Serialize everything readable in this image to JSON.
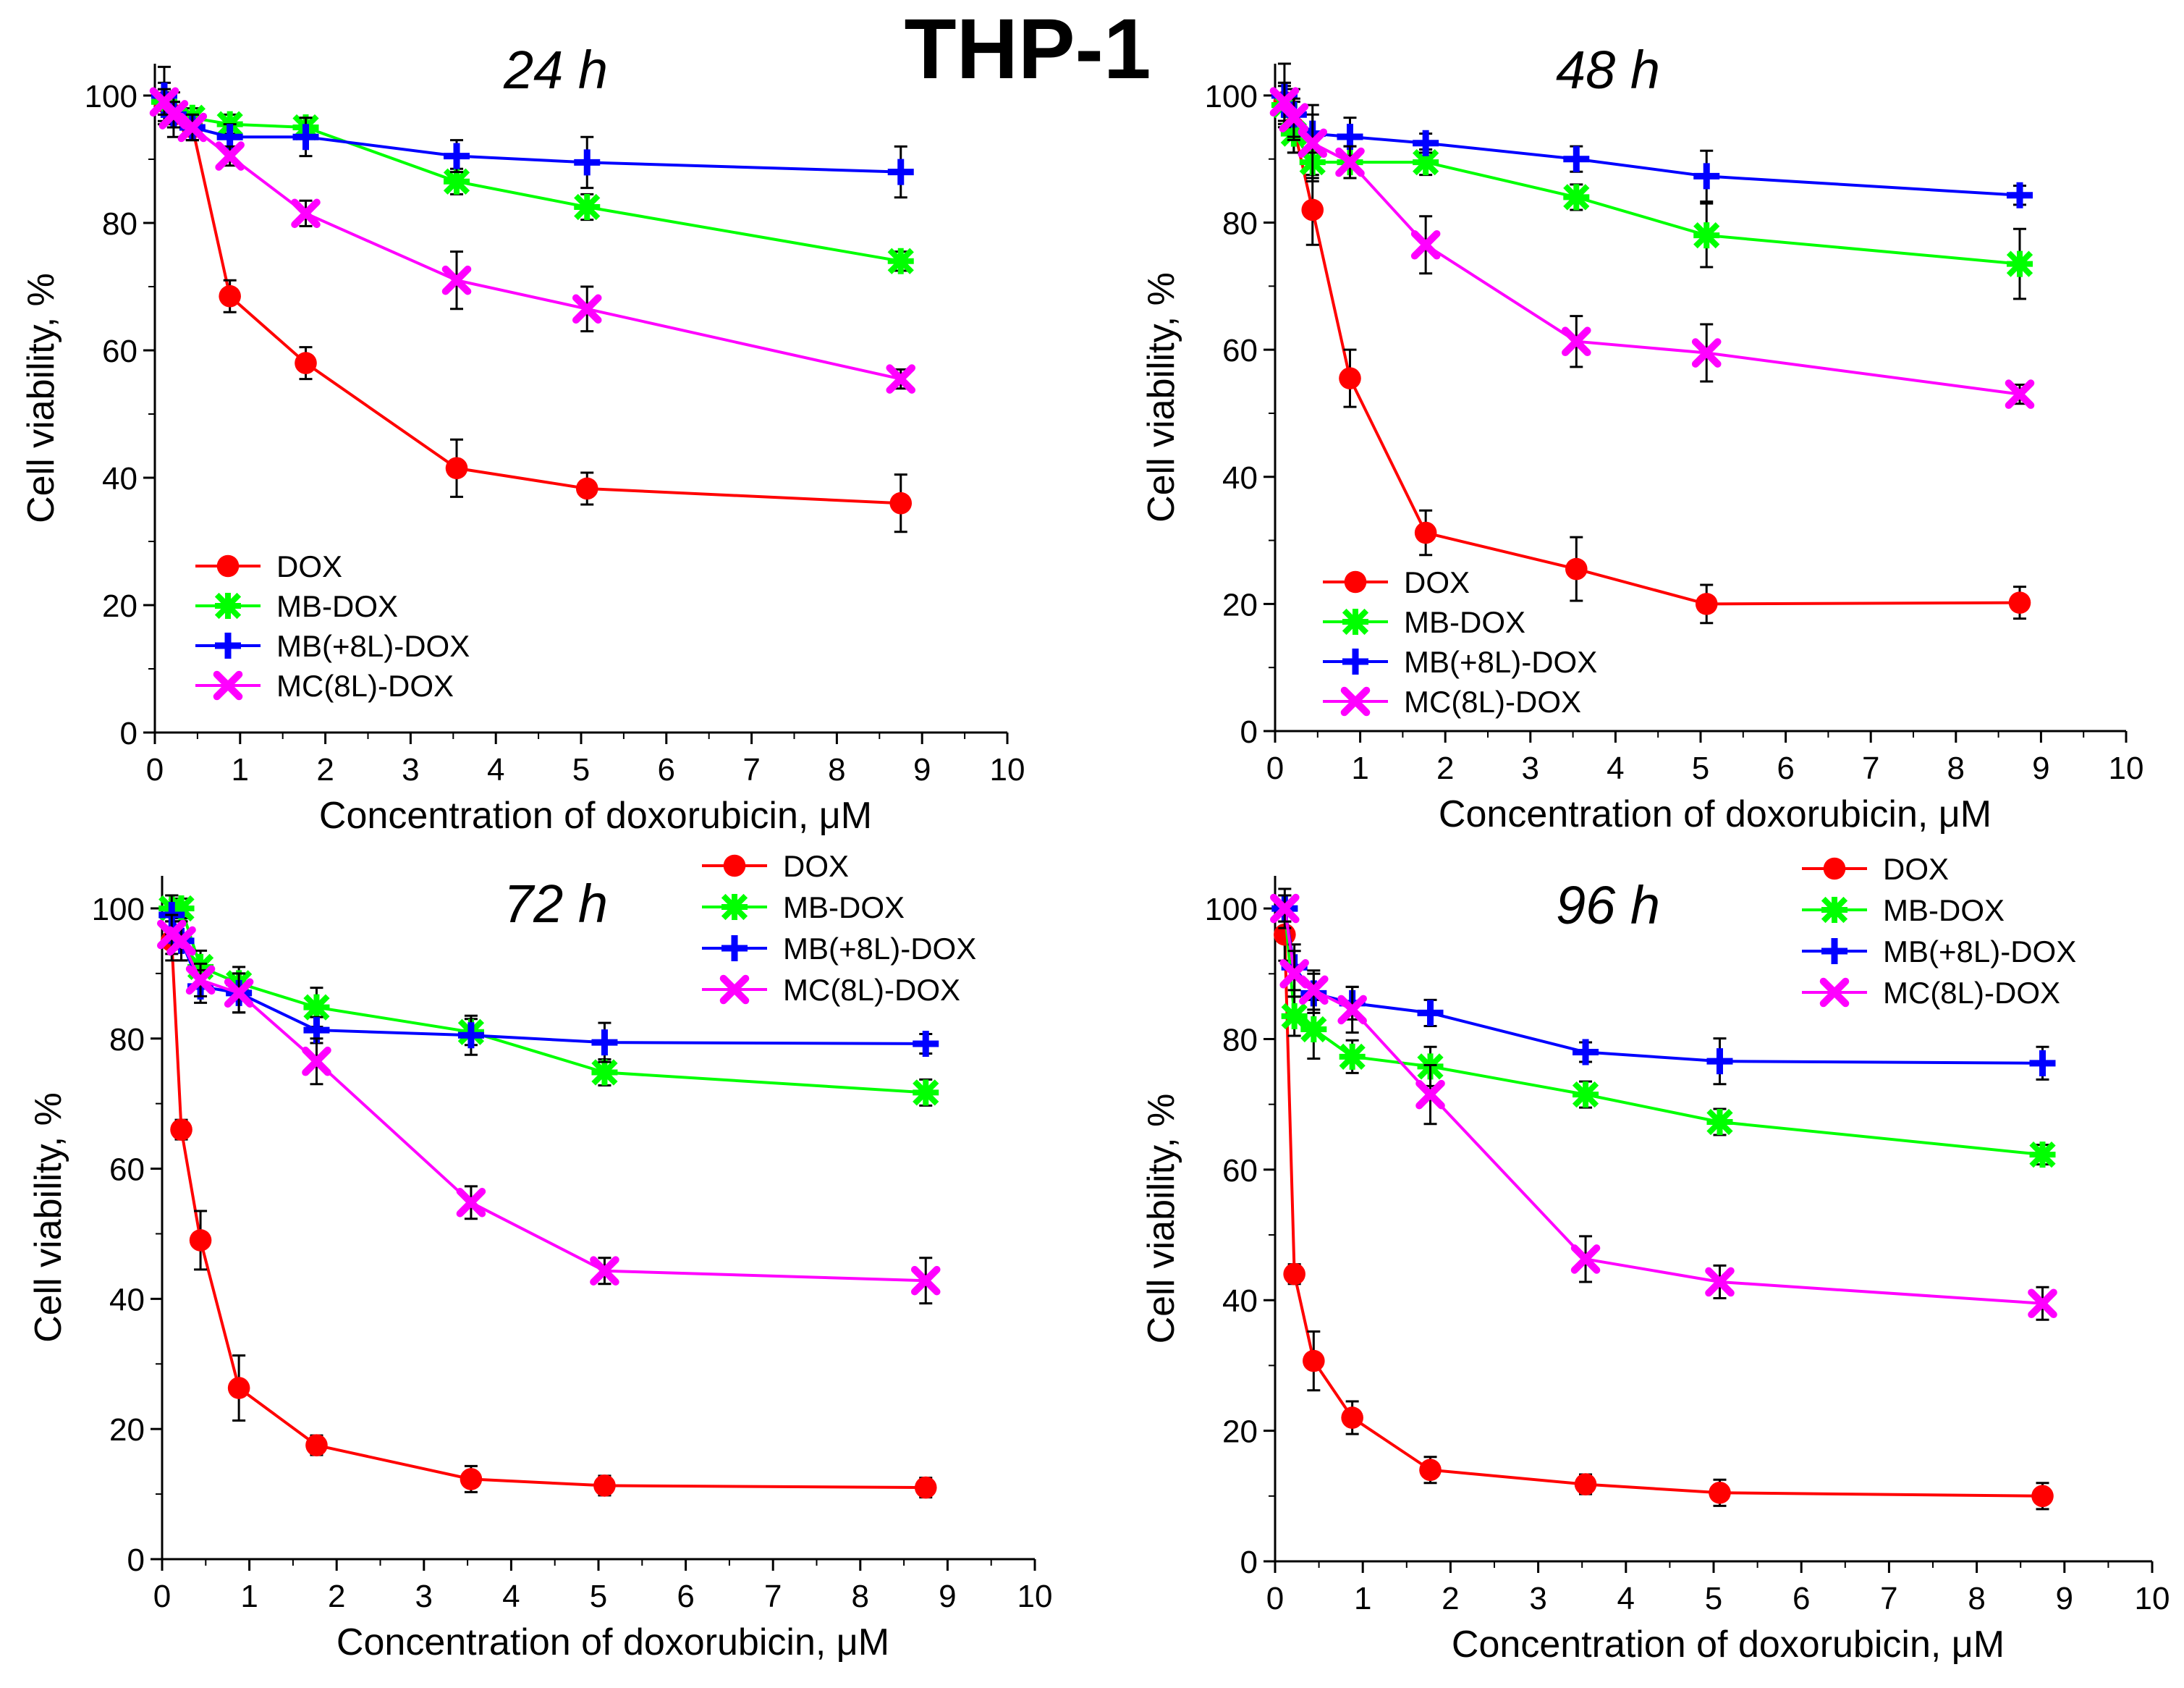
{
  "figure_title": "THP-1",
  "chart_data": [
    {
      "type": "line",
      "title": "24 h",
      "xlabel": "Concentration of doxorubicin, μM",
      "ylabel": "Cell viability, %",
      "xlim": [
        0,
        10
      ],
      "ylim": [
        0,
        105
      ],
      "xticks": [
        0,
        1,
        2,
        3,
        4,
        5,
        6,
        7,
        8,
        9,
        10
      ],
      "yticks": [
        0,
        20,
        40,
        60,
        80,
        100
      ],
      "grid": false,
      "legend_position": "bottom-left",
      "x": [
        0.11,
        0.22,
        0.44,
        0.88,
        1.77,
        3.54,
        5.07,
        8.75
      ],
      "series": [
        {
          "name": "DOX",
          "color": "#ff0000",
          "marker": "circle",
          "values": [
            99,
            97,
            95,
            68.5,
            58,
            41.5,
            38.3,
            36
          ],
          "errors": [
            2,
            2,
            2,
            2.5,
            2.5,
            4.5,
            2.5,
            4.5
          ]
        },
        {
          "name": "MB-DOX",
          "color": "#00ff00",
          "marker": "star",
          "values": [
            99,
            97,
            96.5,
            95.5,
            95,
            86.5,
            82.5,
            74
          ],
          "errors": [
            3,
            2,
            1.5,
            1.5,
            1.5,
            2,
            2,
            1.5
          ]
        },
        {
          "name": "MB(+8L)-DOX",
          "color": "#0000ff",
          "marker": "plus",
          "values": [
            100,
            97,
            95,
            93.5,
            93.5,
            90.5,
            89.5,
            88
          ],
          "errors": [
            4.5,
            3.5,
            2,
            2,
            3,
            2.5,
            4,
            4
          ]
        },
        {
          "name": "MC(8L)-DOX",
          "color": "#ff00ff",
          "marker": "x",
          "values": [
            99,
            97,
            95,
            90.5,
            81.5,
            71,
            66.5,
            55.5
          ],
          "errors": [
            2,
            2,
            2,
            1.5,
            2,
            4.5,
            3.5,
            1.5
          ]
        }
      ]
    },
    {
      "type": "line",
      "title": "48 h",
      "xlabel": "Concentration of doxorubicin, μM",
      "ylabel": "Cell viability, %",
      "xlim": [
        0,
        10
      ],
      "ylim": [
        0,
        105
      ],
      "xticks": [
        0,
        1,
        2,
        3,
        4,
        5,
        6,
        7,
        8,
        9,
        10
      ],
      "yticks": [
        0,
        20,
        40,
        60,
        80,
        100
      ],
      "grid": false,
      "legend_position": "bottom-left",
      "x": [
        0.11,
        0.22,
        0.44,
        0.88,
        1.77,
        3.54,
        5.07,
        8.75
      ],
      "series": [
        {
          "name": "DOX",
          "color": "#ff0000",
          "marker": "circle",
          "values": [
            99,
            95,
            82,
            55.5,
            31.2,
            25.5,
            20,
            20.2
          ],
          "errors": [
            3,
            4,
            5.5,
            4.5,
            3.5,
            5,
            3,
            2.5
          ]
        },
        {
          "name": "MB-DOX",
          "color": "#00ff00",
          "marker": "star",
          "values": [
            98.5,
            94,
            89.5,
            89.5,
            89.5,
            84,
            78,
            73.5
          ],
          "errors": [
            3,
            3,
            2.5,
            2.5,
            2,
            2,
            5,
            5.5
          ]
        },
        {
          "name": "MB(+8L)-DOX",
          "color": "#0000ff",
          "marker": "plus",
          "values": [
            100,
            97,
            94,
            93.5,
            92.5,
            90,
            87.3,
            84.3
          ],
          "errors": [
            5,
            4,
            3,
            3,
            1.5,
            2,
            4,
            1.5
          ]
        },
        {
          "name": "MC(8L)-DOX",
          "color": "#ff00ff",
          "marker": "x",
          "values": [
            99,
            96.5,
            92.5,
            89.5,
            76.5,
            61.3,
            59.5,
            53
          ],
          "errors": [
            3,
            3,
            6,
            2.5,
            4.5,
            4,
            4.5,
            1.5
          ]
        }
      ]
    },
    {
      "type": "line",
      "title": "72 h",
      "xlabel": "Concentration of doxorubicin, μM",
      "ylabel": "Cell viability, %",
      "xlim": [
        0,
        10
      ],
      "ylim": [
        0,
        105
      ],
      "xticks": [
        0,
        1,
        2,
        3,
        4,
        5,
        6,
        7,
        8,
        9,
        10
      ],
      "yticks": [
        0,
        20,
        40,
        60,
        80,
        100
      ],
      "grid": false,
      "legend_position": "top-right",
      "x": [
        0.11,
        0.22,
        0.44,
        0.88,
        1.77,
        3.54,
        5.07,
        8.75
      ],
      "series": [
        {
          "name": "DOX",
          "color": "#ff0000",
          "marker": "circle",
          "values": [
            95,
            66,
            49,
            26.3,
            17.5,
            12.3,
            11.3,
            11
          ],
          "errors": [
            3,
            1.5,
            4.5,
            5,
            1.5,
            2,
            1.5,
            1.5
          ]
        },
        {
          "name": "MB-DOX",
          "color": "#00ff00",
          "marker": "star",
          "values": [
            100,
            100,
            91,
            88.5,
            84.8,
            81,
            74.8,
            71.7
          ],
          "errors": [
            2,
            1.5,
            2.5,
            2.5,
            3,
            2,
            2,
            2
          ]
        },
        {
          "name": "MB(+8L)-DOX",
          "color": "#0000ff",
          "marker": "plus",
          "values": [
            99,
            95,
            88,
            87,
            81.3,
            80.5,
            79.4,
            79.2
          ],
          "errors": [
            3,
            3,
            2.5,
            3,
            2,
            3,
            3,
            1.5
          ]
        },
        {
          "name": "MC(8L)-DOX",
          "color": "#ff00ff",
          "marker": "x",
          "values": [
            96,
            95,
            89,
            87,
            76.5,
            54.8,
            44.3,
            42.8
          ],
          "errors": [
            3,
            3,
            2.5,
            3,
            3.5,
            2.5,
            2,
            3.5
          ]
        }
      ]
    },
    {
      "type": "line",
      "title": "96 h",
      "xlabel": "Concentration of doxorubicin, μM",
      "ylabel": "Cell viability, %",
      "xlim": [
        0,
        10
      ],
      "ylim": [
        0,
        105
      ],
      "xticks": [
        0,
        1,
        2,
        3,
        4,
        5,
        6,
        7,
        8,
        9,
        10
      ],
      "yticks": [
        0,
        20,
        40,
        60,
        80,
        100
      ],
      "grid": false,
      "legend_position": "top-right",
      "x": [
        0.11,
        0.22,
        0.44,
        0.88,
        1.77,
        3.54,
        5.07,
        8.75
      ],
      "series": [
        {
          "name": "DOX",
          "color": "#ff0000",
          "marker": "circle",
          "values": [
            96,
            44,
            30.7,
            22,
            14,
            11.8,
            10.5,
            10
          ],
          "errors": [
            4,
            1.5,
            4.5,
            2.5,
            2,
            1.5,
            2,
            2
          ]
        },
        {
          "name": "MB-DOX",
          "color": "#00ff00",
          "marker": "star",
          "values": [
            100,
            83.5,
            81.5,
            77.3,
            75.8,
            71.5,
            67.3,
            62.3
          ],
          "errors": [
            2,
            3,
            4.5,
            2.5,
            3,
            2,
            2,
            1.5
          ]
        },
        {
          "name": "MB(+8L)-DOX",
          "color": "#0000ff",
          "marker": "plus",
          "values": [
            100,
            91,
            87,
            85.5,
            84,
            78,
            76.6,
            76.3
          ],
          "errors": [
            3,
            3.5,
            3,
            2.5,
            2,
            1.5,
            3.5,
            2.5
          ]
        },
        {
          "name": "MC(8L)-DOX",
          "color": "#ff00ff",
          "marker": "x",
          "values": [
            100,
            90,
            87.5,
            84.5,
            71.5,
            46.3,
            42.8,
            39.5
          ],
          "errors": [
            2,
            3.5,
            3,
            3.5,
            4.5,
            3.5,
            2.5,
            2.5
          ]
        }
      ]
    }
  ]
}
